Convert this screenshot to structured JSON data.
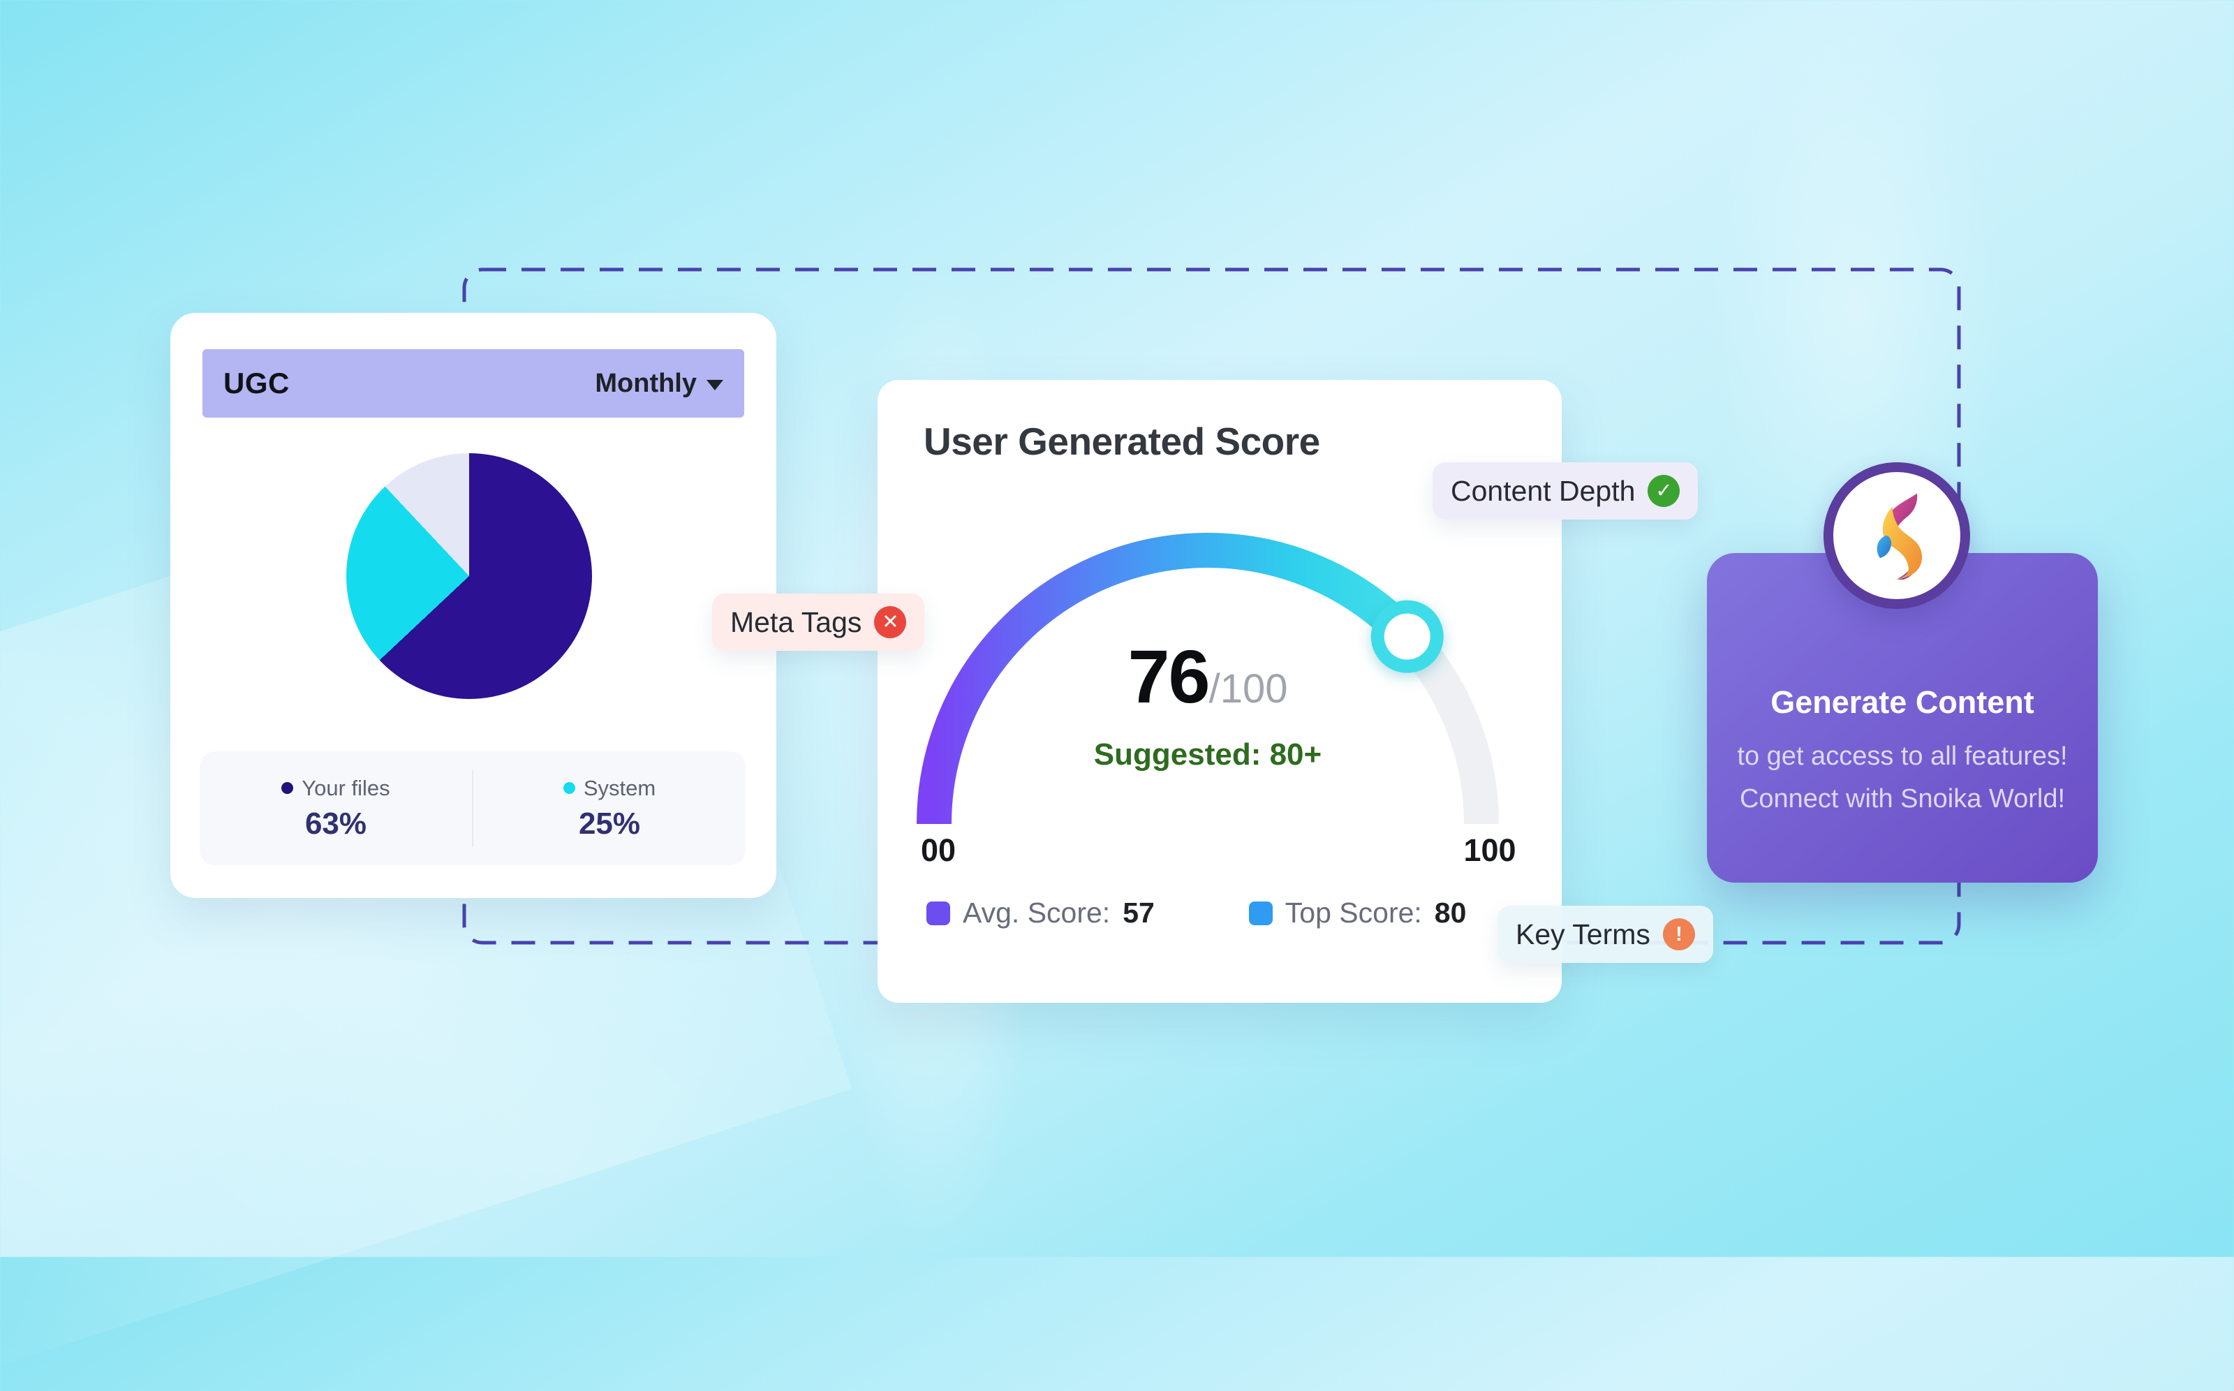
{
  "ugc_card": {
    "title": "UGC",
    "period": "Monthly",
    "header_bg": "#b3b6f2",
    "legend": [
      {
        "label": "Your files",
        "value": "63%"
      },
      {
        "label": "System",
        "value": "25%"
      }
    ]
  },
  "score_card": {
    "title": "User Generated Score",
    "score": "76",
    "score_denominator": "/100",
    "suggested": "Suggested: 80+",
    "scale_start": "00",
    "scale_end": "100",
    "legend": [
      {
        "label": "Avg. Score:",
        "value": "57"
      },
      {
        "label": "Top Score:",
        "value": "80"
      }
    ]
  },
  "pills": {
    "meta_tags": {
      "label": "Meta Tags",
      "status": "error"
    },
    "content_depth": {
      "label": "Content Depth",
      "status": "success"
    },
    "key_terms": {
      "label": "Key Terms",
      "status": "warning"
    }
  },
  "promo_card": {
    "title": "Generate Content",
    "line1": "to get access to all features!",
    "line2": "Connect with Snoika World!"
  },
  "frame": {
    "dash_color": "#4a42ad"
  },
  "chart_data": [
    {
      "type": "pie",
      "title": "UGC",
      "period": "Monthly",
      "slices": [
        {
          "label": "Your files",
          "value": 63,
          "color": "#2c1192"
        },
        {
          "label": "System",
          "value": 25,
          "color": "#14dcee"
        },
        {
          "label": "",
          "value": 12,
          "color": "#e4e7f6"
        }
      ]
    },
    {
      "type": "gauge",
      "title": "User Generated Score",
      "value": 76,
      "max": 100,
      "suggested_min": 80,
      "scale_labels": [
        "00",
        "100"
      ],
      "legend": [
        {
          "label": "Avg. Score",
          "value": 57,
          "color": "#6b4df0"
        },
        {
          "label": "Top Score",
          "value": 80,
          "color": "#2f9bf2"
        }
      ],
      "gradient": [
        "#7b43f5",
        "#41a2f3",
        "#2fd0ec",
        "#3edce9"
      ],
      "track_color": "#eef0f3"
    }
  ]
}
